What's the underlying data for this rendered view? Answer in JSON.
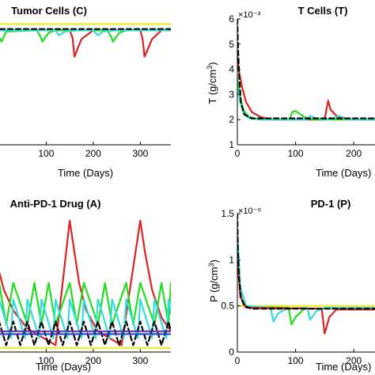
{
  "chart_data": [
    {
      "id": "tumor",
      "type": "line",
      "title": "Tumor Cells (C)",
      "xlabel": "Time (Days)",
      "ylabel": "",
      "y_exponent": "",
      "xlim": [
        -15,
        365
      ],
      "ylim": [
        0,
        1
      ],
      "xticks": [
        100,
        200,
        300
      ],
      "yticks": [],
      "colors": {
        "red": "#dd2222",
        "green": "#22dd22",
        "cyan": "#33dddd",
        "black": "#000000",
        "yellow": "#eeee22",
        "purple": "#6633aa",
        "blue": "#2244cc"
      },
      "series": [
        {
          "color": "yellow",
          "dashed": false,
          "x": [
            -15,
            365
          ],
          "y": [
            0.96,
            0.96
          ]
        },
        {
          "color": "red",
          "dashed": false,
          "x": [
            -15,
            150,
            156,
            160,
            175,
            200,
            300,
            305,
            309,
            325,
            345,
            365
          ],
          "y": [
            0.91,
            0.91,
            0.85,
            0.7,
            0.84,
            0.91,
            0.91,
            0.84,
            0.7,
            0.84,
            0.91,
            0.91
          ]
        },
        {
          "color": "green",
          "dashed": false,
          "x": [
            -15,
            -3,
            0,
            5,
            15,
            80,
            88,
            92,
            105,
            120,
            230,
            238,
            242,
            255,
            270,
            365
          ],
          "y": [
            0.91,
            0.91,
            0.86,
            0.82,
            0.9,
            0.91,
            0.86,
            0.82,
            0.89,
            0.91,
            0.91,
            0.86,
            0.82,
            0.89,
            0.91,
            0.91
          ]
        },
        {
          "color": "cyan",
          "dashed": false,
          "x": [
            -15,
            120,
            127,
            140,
            170,
            200,
            210,
            220,
            250,
            365
          ],
          "y": [
            0.91,
            0.91,
            0.87,
            0.9,
            0.91,
            0.91,
            0.87,
            0.9,
            0.91,
            0.91
          ]
        },
        {
          "color": "black",
          "dashed": true,
          "x": [
            -15,
            365
          ],
          "y": [
            0.92,
            0.92
          ]
        }
      ]
    },
    {
      "id": "tcells",
      "type": "line",
      "title": "T Cells (T)",
      "xlabel": "Time (Days)",
      "ylabel": "T (g/cm3)",
      "y_exponent": "×10⁻³",
      "xlim": [
        0,
        250
      ],
      "ylim": [
        1,
        6
      ],
      "xticks": [
        0,
        100,
        200
      ],
      "yticks": [
        1,
        2,
        3,
        4,
        5,
        6
      ],
      "colors": {
        "red": "#dd2222",
        "green": "#22dd22",
        "cyan": "#33dddd",
        "black": "#000000"
      },
      "series": [
        {
          "color": "red",
          "dashed": false,
          "x": [
            0,
            3,
            8,
            15,
            25,
            40,
            60,
            150,
            153,
            156,
            160,
            170,
            185,
            200,
            250
          ],
          "y": [
            4.5,
            3.9,
            3.3,
            2.7,
            2.3,
            2.1,
            2.0,
            2.0,
            2.4,
            2.75,
            2.4,
            2.15,
            2.05,
            2.0,
            2.0
          ]
        },
        {
          "color": "green",
          "dashed": false,
          "x": [
            0,
            5,
            10,
            20,
            40,
            90,
            94,
            100,
            115,
            130,
            250
          ],
          "y": [
            3.6,
            2.9,
            2.4,
            2.1,
            2.0,
            2.0,
            2.3,
            2.35,
            2.1,
            2.0,
            2.0
          ]
        },
        {
          "color": "cyan",
          "dashed": false,
          "x": [
            0,
            5,
            10,
            20,
            40,
            120,
            125,
            135,
            160,
            175,
            180,
            190,
            250
          ],
          "y": [
            3.3,
            2.7,
            2.3,
            2.05,
            2.0,
            2.0,
            2.15,
            2.05,
            2.0,
            2.15,
            2.05,
            2.0,
            2.0
          ]
        },
        {
          "color": "black",
          "dashed": true,
          "x": [
            0,
            1,
            3,
            6,
            12,
            25,
            250
          ],
          "y": [
            6.0,
            5.0,
            3.8,
            2.7,
            2.2,
            2.05,
            2.05
          ]
        }
      ]
    },
    {
      "id": "drug",
      "type": "line",
      "title": "Anti-PD-1 Drug (A)",
      "xlabel": "Time (Days)",
      "ylabel": "",
      "y_exponent": "",
      "xlim": [
        -15,
        365
      ],
      "ylim": [
        0,
        1
      ],
      "xticks": [
        100,
        200,
        300
      ],
      "yticks": [],
      "colors": {
        "red": "#dd2222",
        "green": "#22dd22",
        "cyan": "#33dddd",
        "black": "#000000",
        "yellow": "#eeee22",
        "purple": "#6633aa",
        "blue": "#2244cc"
      },
      "series": [
        {
          "color": "yellow",
          "dashed": false,
          "x": [
            -15,
            365
          ],
          "y": [
            0.03,
            0.03
          ]
        },
        {
          "color": "red",
          "dashed": false,
          "x": [
            -15,
            0,
            10,
            30,
            60,
            120,
            150,
            160,
            170,
            185,
            210,
            260,
            300,
            310,
            325,
            345,
            365
          ],
          "y": [
            0.12,
            0.58,
            0.45,
            0.3,
            0.17,
            0.05,
            0.95,
            0.72,
            0.5,
            0.3,
            0.15,
            0.05,
            0.95,
            0.72,
            0.45,
            0.25,
            0.15
          ]
        },
        {
          "color": "green",
          "dashed": false,
          "x": [
            -15,
            0,
            15,
            30,
            60,
            75,
            90,
            105,
            120,
            150,
            165,
            180,
            210,
            225,
            240,
            270,
            285,
            300,
            330,
            345,
            360,
            365
          ],
          "y": [
            0.2,
            0.5,
            0.2,
            0.5,
            0.2,
            0.5,
            0.2,
            0.5,
            0.2,
            0.5,
            0.2,
            0.5,
            0.2,
            0.5,
            0.2,
            0.5,
            0.2,
            0.5,
            0.2,
            0.5,
            0.2,
            0.5
          ]
        },
        {
          "color": "cyan",
          "dashed": false,
          "x": [
            -15,
            0,
            25,
            30,
            55,
            60,
            85,
            90,
            115,
            120,
            145,
            150,
            175,
            180,
            205,
            210,
            235,
            240,
            265,
            270,
            295,
            300,
            325,
            330,
            355,
            360,
            365
          ],
          "y": [
            0.1,
            0.38,
            0.1,
            0.38,
            0.1,
            0.38,
            0.1,
            0.38,
            0.1,
            0.38,
            0.1,
            0.38,
            0.1,
            0.38,
            0.1,
            0.38,
            0.1,
            0.38,
            0.1,
            0.38,
            0.1,
            0.38,
            0.1,
            0.38,
            0.1,
            0.38,
            0.28
          ]
        },
        {
          "color": "black",
          "dashed": true,
          "x": [
            -15,
            0,
            15,
            30,
            45,
            60,
            75,
            90,
            105,
            120,
            135,
            150,
            165,
            180,
            195,
            210,
            225,
            240,
            255,
            270,
            285,
            300,
            315,
            330,
            345,
            360,
            365
          ],
          "y": [
            0.05,
            0.22,
            0.05,
            0.22,
            0.05,
            0.22,
            0.05,
            0.22,
            0.05,
            0.22,
            0.05,
            0.22,
            0.05,
            0.22,
            0.05,
            0.22,
            0.05,
            0.22,
            0.05,
            0.22,
            0.05,
            0.22,
            0.05,
            0.22,
            0.05,
            0.22,
            0.15
          ]
        },
        {
          "color": "purple",
          "dashed": false,
          "x": [
            -15,
            365
          ],
          "y": [
            0.15,
            0.15
          ]
        },
        {
          "color": "blue",
          "dashed": false,
          "x": [
            -15,
            365
          ],
          "y": [
            0.13,
            0.13
          ]
        }
      ]
    },
    {
      "id": "pd1",
      "type": "line",
      "title": "PD-1 (P)",
      "xlabel": "Time (Days)",
      "ylabel": "P (g/cm3)",
      "y_exponent": "×10⁻⁹",
      "xlim": [
        0,
        250
      ],
      "ylim": [
        0,
        1.5
      ],
      "xticks": [
        0,
        100,
        200
      ],
      "yticks": [
        0,
        0.5,
        1,
        1.5
      ],
      "colors": {
        "red": "#dd2222",
        "green": "#22dd22",
        "cyan": "#33dddd",
        "black": "#000000",
        "yellow": "#eeee22"
      },
      "series": [
        {
          "color": "yellow",
          "dashed": false,
          "x": [
            0,
            250
          ],
          "y": [
            0.5,
            0.5
          ]
        },
        {
          "color": "green",
          "dashed": false,
          "x": [
            0,
            5,
            15,
            88,
            93,
            100,
            115,
            250
          ],
          "y": [
            1.2,
            0.7,
            0.49,
            0.48,
            0.3,
            0.38,
            0.47,
            0.48
          ]
        },
        {
          "color": "cyan",
          "dashed": false,
          "x": [
            0,
            5,
            15,
            57,
            62,
            70,
            85,
            120,
            125,
            135,
            150,
            250
          ],
          "y": [
            1.3,
            0.7,
            0.5,
            0.48,
            0.33,
            0.42,
            0.47,
            0.48,
            0.35,
            0.44,
            0.48,
            0.48
          ]
        },
        {
          "color": "red",
          "dashed": false,
          "x": [
            0,
            5,
            15,
            145,
            150,
            158,
            170,
            250
          ],
          "y": [
            1.0,
            0.6,
            0.48,
            0.47,
            0.2,
            0.38,
            0.46,
            0.46
          ]
        },
        {
          "color": "black",
          "dashed": true,
          "x": [
            0,
            1,
            3,
            6,
            12,
            25,
            250
          ],
          "y": [
            1.5,
            1.1,
            0.8,
            0.6,
            0.5,
            0.47,
            0.47
          ]
        }
      ]
    }
  ]
}
